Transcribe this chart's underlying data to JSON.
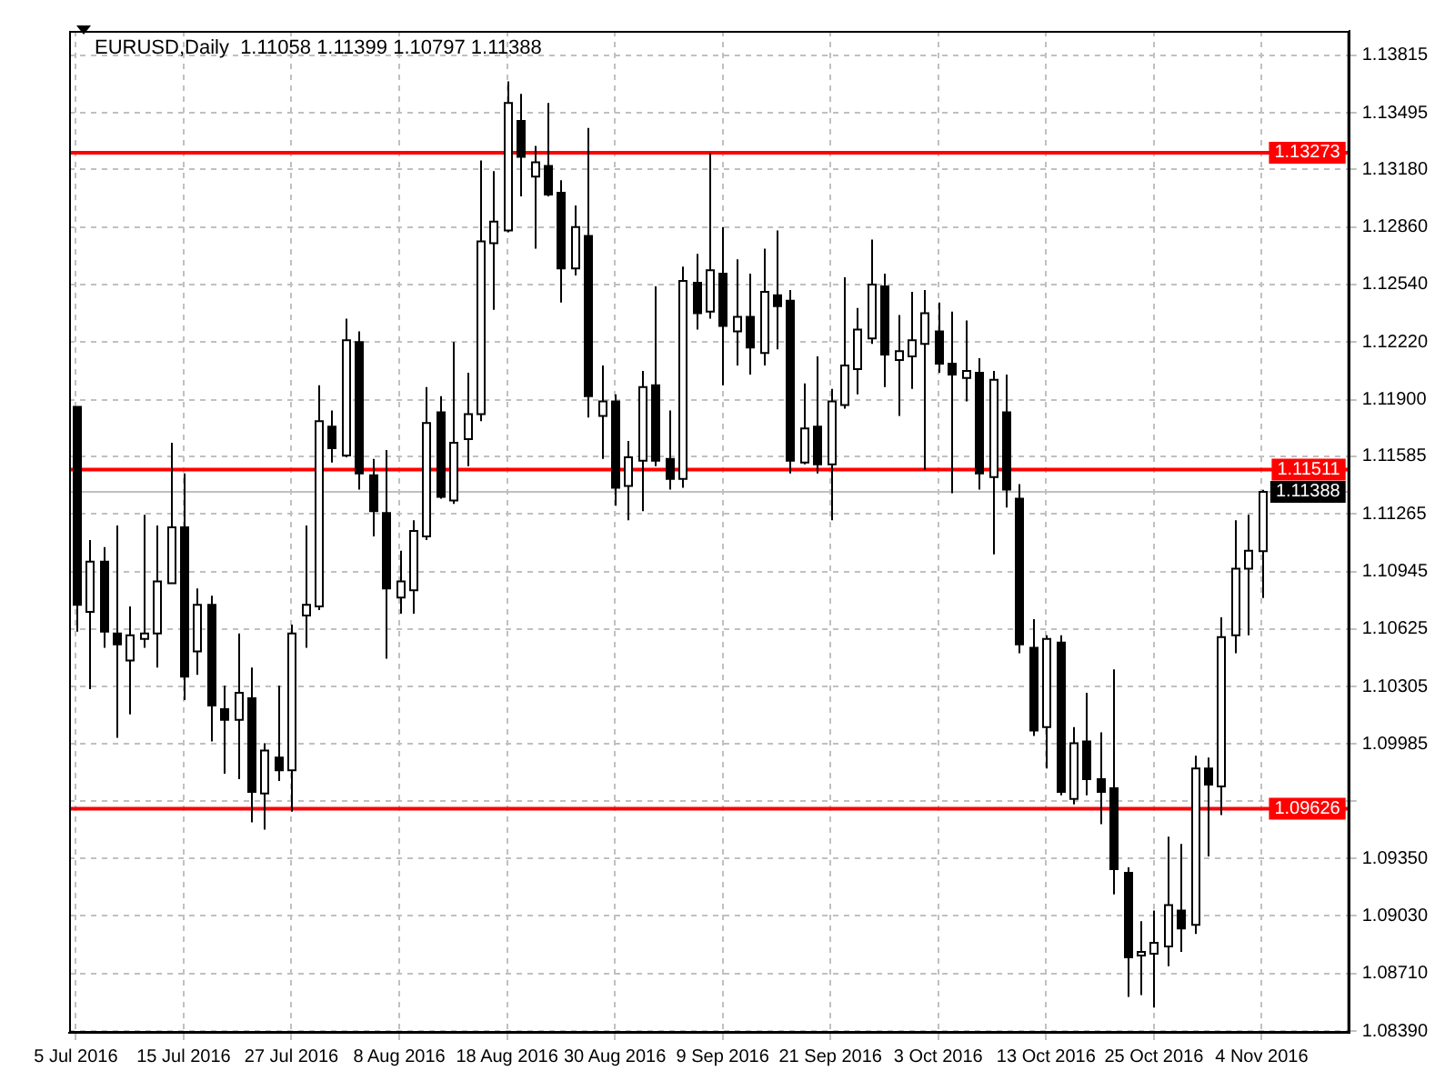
{
  "chart_data": {
    "type": "candlestick",
    "title": "EURUSD,Daily  1.11058 1.11399 1.10797 1.11388",
    "categories": [
      "5 Jul 2016",
      null,
      null,
      null,
      null,
      null,
      null,
      null,
      "15 Jul 2016",
      null,
      null,
      null,
      null,
      null,
      null,
      null,
      "27 Jul 2016",
      null,
      null,
      null,
      null,
      null,
      null,
      null,
      "8 Aug 2016",
      null,
      null,
      null,
      null,
      null,
      null,
      null,
      "18 Aug 2016",
      null,
      null,
      null,
      null,
      null,
      null,
      null,
      "30 Aug 2016",
      null,
      null,
      null,
      null,
      null,
      null,
      null,
      "9 Sep 2016",
      null,
      null,
      null,
      null,
      null,
      null,
      null,
      "21 Sep 2016",
      null,
      null,
      null,
      null,
      null,
      null,
      null,
      "3 Oct 2016",
      null,
      null,
      null,
      null,
      null,
      null,
      null,
      "13 Oct 2016",
      null,
      null,
      null,
      null,
      null,
      null,
      null,
      "25 Oct 2016",
      null,
      null,
      null,
      null,
      null,
      null,
      null,
      "4 Nov 2016"
    ],
    "ohlc": [
      [
        1.1186,
        1.1186,
        1.1061,
        1.1076
      ],
      [
        1.1072,
        1.1112,
        1.1029,
        1.11
      ],
      [
        1.11,
        1.1108,
        1.1052,
        1.1061
      ],
      [
        1.106,
        1.112,
        1.1002,
        1.1054
      ],
      [
        1.1045,
        1.1075,
        1.1015,
        1.1059
      ],
      [
        1.1057,
        1.1126,
        1.1052,
        1.106
      ],
      [
        1.106,
        1.112,
        1.1041,
        1.1089
      ],
      [
        1.1088,
        1.1166,
        1.1088,
        1.1119
      ],
      [
        1.1119,
        1.1149,
        1.1023,
        1.1036
      ],
      [
        1.105,
        1.1085,
        1.1037,
        1.1076
      ],
      [
        1.1076,
        1.1081,
        1.1,
        1.102
      ],
      [
        1.1018,
        1.1031,
        1.0982,
        1.1012
      ],
      [
        1.1012,
        1.106,
        1.0979,
        1.1027
      ],
      [
        1.1024,
        1.1041,
        1.0955,
        1.0972
      ],
      [
        1.0971,
        1.0999,
        1.0951,
        1.0995
      ],
      [
        1.0991,
        1.1031,
        1.0978,
        1.0984
      ],
      [
        1.0984,
        1.1065,
        1.0961,
        1.106
      ],
      [
        1.107,
        1.112,
        1.1052,
        1.1076
      ],
      [
        1.1075,
        1.1198,
        1.1073,
        1.1178
      ],
      [
        1.1175,
        1.1184,
        1.1155,
        1.1163
      ],
      [
        1.1159,
        1.1235,
        1.1158,
        1.1223
      ],
      [
        1.1222,
        1.1228,
        1.114,
        1.1149
      ],
      [
        1.1148,
        1.1157,
        1.1114,
        1.1128
      ],
      [
        1.1127,
        1.1162,
        1.1046,
        1.1085
      ],
      [
        1.108,
        1.1106,
        1.1071,
        1.1089
      ],
      [
        1.1084,
        1.1123,
        1.1071,
        1.1117
      ],
      [
        1.1114,
        1.1197,
        1.1112,
        1.1177
      ],
      [
        1.1183,
        1.1192,
        1.1135,
        1.1136
      ],
      [
        1.1134,
        1.1222,
        1.1132,
        1.1166
      ],
      [
        1.1168,
        1.1205,
        1.1153,
        1.1182
      ],
      [
        1.1182,
        1.1323,
        1.1178,
        1.1278
      ],
      [
        1.1277,
        1.1317,
        1.124,
        1.1289
      ],
      [
        1.1284,
        1.1367,
        1.1283,
        1.1355
      ],
      [
        1.1345,
        1.136,
        1.1303,
        1.1325
      ],
      [
        1.1314,
        1.1331,
        1.1274,
        1.1322
      ],
      [
        1.132,
        1.1355,
        1.1303,
        1.1304
      ],
      [
        1.1305,
        1.1312,
        1.1244,
        1.1263
      ],
      [
        1.1263,
        1.1298,
        1.1259,
        1.1286
      ],
      [
        1.1281,
        1.1341,
        1.118,
        1.1192
      ],
      [
        1.1181,
        1.1209,
        1.1157,
        1.1189
      ],
      [
        1.1189,
        1.1193,
        1.1131,
        1.1141
      ],
      [
        1.1142,
        1.1167,
        1.1123,
        1.1158
      ],
      [
        1.1156,
        1.1206,
        1.1128,
        1.1197
      ],
      [
        1.1198,
        1.1253,
        1.1153,
        1.1156
      ],
      [
        1.1157,
        1.1184,
        1.114,
        1.1146
      ],
      [
        1.1146,
        1.1264,
        1.1141,
        1.1256
      ],
      [
        1.1255,
        1.1271,
        1.1229,
        1.1238
      ],
      [
        1.1239,
        1.1327,
        1.1235,
        1.1262
      ],
      [
        1.126,
        1.1286,
        1.1198,
        1.1231
      ],
      [
        1.1228,
        1.1268,
        1.1209,
        1.1236
      ],
      [
        1.1236,
        1.126,
        1.1204,
        1.1219
      ],
      [
        1.1216,
        1.1274,
        1.1209,
        1.125
      ],
      [
        1.1248,
        1.1284,
        1.1218,
        1.1242
      ],
      [
        1.1245,
        1.1251,
        1.1149,
        1.1156
      ],
      [
        1.1155,
        1.1199,
        1.1154,
        1.1174
      ],
      [
        1.1175,
        1.1214,
        1.1149,
        1.1154
      ],
      [
        1.1154,
        1.1196,
        1.1123,
        1.1189
      ],
      [
        1.1187,
        1.1258,
        1.1185,
        1.1209
      ],
      [
        1.1207,
        1.1241,
        1.1193,
        1.1229
      ],
      [
        1.1224,
        1.1279,
        1.1221,
        1.1254
      ],
      [
        1.1253,
        1.126,
        1.1197,
        1.1215
      ],
      [
        1.1212,
        1.1237,
        1.1181,
        1.1217
      ],
      [
        1.1214,
        1.125,
        1.1196,
        1.1223
      ],
      [
        1.1221,
        1.1251,
        1.1151,
        1.1238
      ],
      [
        1.1228,
        1.1244,
        1.1205,
        1.121
      ],
      [
        1.121,
        1.1239,
        1.1138,
        1.1204
      ],
      [
        1.1202,
        1.1234,
        1.1189,
        1.1206
      ],
      [
        1.1205,
        1.1213,
        1.114,
        1.1149
      ],
      [
        1.1147,
        1.1206,
        1.1104,
        1.1201
      ],
      [
        1.1183,
        1.1204,
        1.113,
        1.114
      ],
      [
        1.1135,
        1.1143,
        1.1049,
        1.1054
      ],
      [
        1.1052,
        1.1068,
        1.1003,
        1.1006
      ],
      [
        1.1008,
        1.1059,
        1.0985,
        1.1057
      ],
      [
        1.1055,
        1.1059,
        1.097,
        1.0972
      ],
      [
        1.0968,
        1.1008,
        1.0965,
        1.0999
      ],
      [
        1.1,
        1.1027,
        1.097,
        1.0979
      ],
      [
        1.0979,
        1.1005,
        1.0954,
        1.0972
      ],
      [
        1.0974,
        1.104,
        1.0915,
        1.0929
      ],
      [
        1.0927,
        1.093,
        1.0858,
        1.088
      ],
      [
        1.0881,
        1.09,
        1.0859,
        1.0883
      ],
      [
        1.0882,
        1.0906,
        1.0852,
        1.0888
      ],
      [
        1.0886,
        1.0947,
        1.0875,
        1.0909
      ],
      [
        1.0906,
        1.0943,
        1.0883,
        1.0896
      ],
      [
        1.0898,
        1.0992,
        1.0893,
        1.0985
      ],
      [
        1.0985,
        1.0991,
        1.0936,
        1.0976
      ],
      [
        1.0975,
        1.1069,
        1.0959,
        1.1058
      ],
      [
        1.1059,
        1.1123,
        1.1049,
        1.1096
      ],
      [
        1.1096,
        1.1126,
        1.1059,
        1.1106
      ],
      [
        1.11058,
        1.11399,
        1.10797,
        1.11388
      ]
    ],
    "ylim": [
      1.0838,
      1.1395
    ],
    "yticks": [
      1.13815,
      1.13495,
      {
        "value": 1.1318,
        "label": "1.13180"
      },
      {
        "value": 1.1286,
        "label": "1.12860"
      },
      {
        "value": 1.1254,
        "label": "1.12540"
      },
      {
        "value": 1.1222,
        "label": "1.12220"
      },
      {
        "value": 1.119,
        "label": "1.11900"
      },
      1.11585,
      1.11265,
      1.10945,
      1.10625,
      1.10305,
      1.09985,
      {
        "value": 1.0967,
        "label": null
      },
      {
        "value": 1.0935,
        "label": "1.09350"
      },
      {
        "value": 1.0903,
        "label": "1.09030"
      },
      {
        "value": 1.0871,
        "label": "1.08710"
      },
      {
        "value": 1.0839,
        "label": "1.08390"
      }
    ],
    "grid": true,
    "ref_lines": [
      {
        "axis": "y",
        "value": 1.13273,
        "label": "1.13273",
        "color": "#ff0000"
      },
      {
        "axis": "y",
        "value": 1.11511,
        "label": "1.11511",
        "color": "#ff0000"
      },
      {
        "axis": "y",
        "value": 1.09626,
        "label": "1.09626",
        "color": "#ff0000"
      },
      {
        "axis": "y",
        "value": 1.11388,
        "label": "1.11388",
        "color": "#c0c0c0"
      }
    ]
  }
}
